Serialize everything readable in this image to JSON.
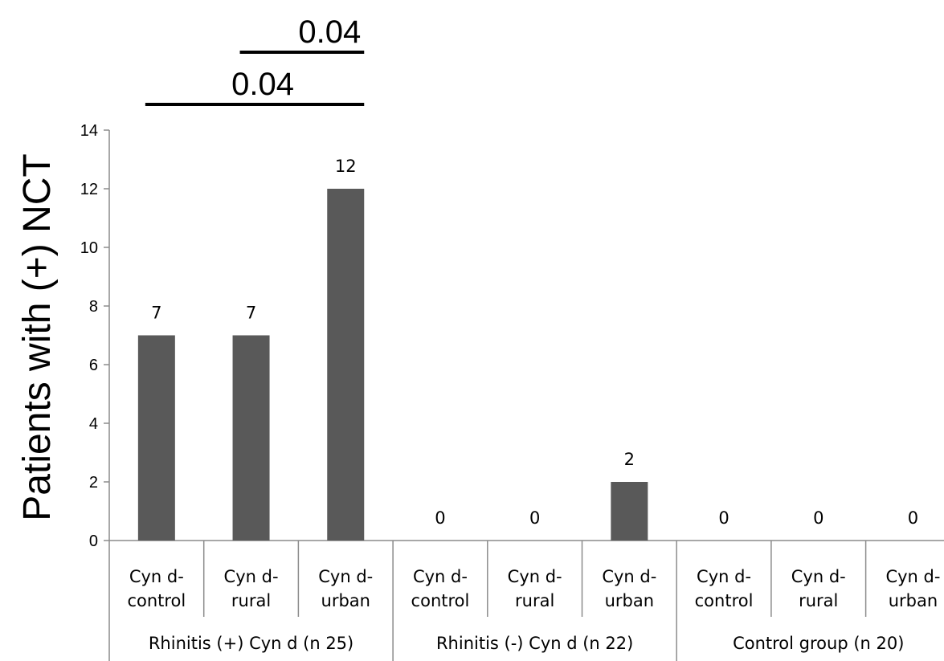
{
  "chart_data": {
    "type": "bar",
    "ylabel": "Patients with (+) NCT",
    "ylim": [
      0,
      14
    ],
    "yticks": [
      0,
      2,
      4,
      6,
      8,
      10,
      12,
      14
    ],
    "groups": [
      {
        "label": "Rhinitis (+) Cyn d (n 25)",
        "categories": [
          "Cyn d-control",
          "Cyn d-rural",
          "Cyn d-urban"
        ],
        "values": [
          7,
          7,
          12
        ]
      },
      {
        "label": "Rhinitis (-) Cyn d (n 22)",
        "categories": [
          "Cyn d-control",
          "Cyn d-rural",
          "Cyn d-urban"
        ],
        "values": [
          0,
          0,
          2
        ]
      },
      {
        "label": "Control group (n 20)",
        "categories": [
          "Cyn d-control",
          "Cyn d-rural",
          "Cyn d-urban"
        ],
        "values": [
          0,
          0,
          0
        ]
      }
    ],
    "category_lines": [
      [
        "Cyn d-",
        "control"
      ],
      [
        "Cyn d-",
        "rural"
      ],
      [
        "Cyn d-",
        "urban"
      ]
    ],
    "bar_color": "#595959",
    "significance": [
      {
        "label": "0.04",
        "from_bar": 1,
        "to_bar": 2
      },
      {
        "label": "0.04",
        "from_bar": 0,
        "to_bar": 2
      }
    ],
    "grid": false,
    "legend": "none"
  }
}
